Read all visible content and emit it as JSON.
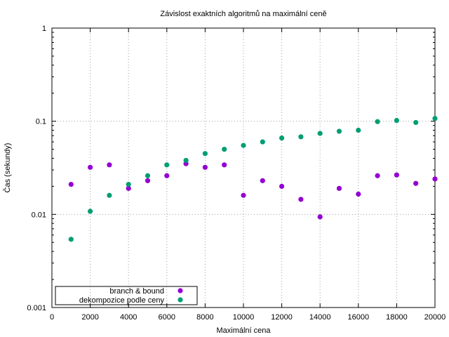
{
  "chart_data": {
    "type": "scatter",
    "title": "Závislost exaktních algoritmů na maximální ceně",
    "xlabel": "Maximální cena",
    "ylabel": "Čas (sekundy)",
    "x_scale": "linear",
    "y_scale": "log",
    "xlim": [
      0,
      20000
    ],
    "ylim": [
      0.001,
      1
    ],
    "grid": true,
    "legend_position": "bottom-left",
    "x_ticks": [
      0,
      2000,
      4000,
      6000,
      8000,
      10000,
      12000,
      14000,
      16000,
      18000,
      20000
    ],
    "x_tick_labels": [
      "0",
      "2000",
      "4000",
      "6000",
      "8000",
      "10000",
      "12000",
      "14000",
      "16000",
      "18000",
      "20000"
    ],
    "y_ticks": [
      0.001,
      0.01,
      0.1,
      1
    ],
    "y_tick_labels": [
      "0.001",
      "0.01",
      "0.1",
      "1"
    ],
    "x": [
      1000,
      2000,
      3000,
      4000,
      5000,
      6000,
      7000,
      8000,
      9000,
      10000,
      11000,
      12000,
      13000,
      14000,
      15000,
      16000,
      17000,
      18000,
      19000,
      20000
    ],
    "series": [
      {
        "name": "branch & bound",
        "color": "#9400d3",
        "values": [
          0.021,
          0.032,
          0.034,
          0.019,
          0.023,
          0.026,
          0.035,
          0.032,
          0.034,
          0.016,
          0.023,
          0.02,
          0.0145,
          0.0094,
          0.019,
          0.0165,
          0.026,
          0.0265,
          0.0215,
          0.024
        ]
      },
      {
        "name": "dekompozice podle ceny",
        "color": "#009e73",
        "values": [
          0.0054,
          0.0108,
          0.016,
          0.021,
          0.026,
          0.034,
          0.038,
          0.045,
          0.05,
          0.055,
          0.06,
          0.066,
          0.068,
          0.074,
          0.078,
          0.08,
          0.099,
          0.102,
          0.097,
          0.107
        ]
      }
    ]
  }
}
